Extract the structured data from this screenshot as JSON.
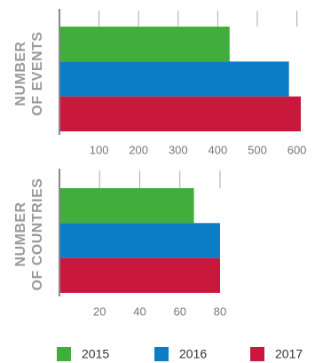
{
  "chart_data": [
    {
      "type": "bar",
      "orientation": "horizontal",
      "ylabel": [
        "NUMBER",
        "OF EVENTS"
      ],
      "series": [
        {
          "name": "2015",
          "color": "#3fae3b",
          "values": [
            430
          ]
        },
        {
          "name": "2016",
          "color": "#0a7dc6",
          "values": [
            580
          ]
        },
        {
          "name": "2017",
          "color": "#c8193d",
          "values": [
            610
          ]
        }
      ],
      "xlim": [
        0,
        620
      ],
      "xticks": [
        100,
        200,
        300,
        400,
        500,
        600
      ]
    },
    {
      "type": "bar",
      "orientation": "horizontal",
      "ylabel": [
        "NUMBER",
        "OF COUNTRIES"
      ],
      "series": [
        {
          "values": [
            67
          ]
        },
        {
          "values": [
            80
          ]
        },
        {
          "values": [
            80
          ]
        }
      ],
      "xlim": [
        0,
        80
      ],
      "xticks": [
        20,
        40,
        60,
        80
      ]
    }
  ]
}
